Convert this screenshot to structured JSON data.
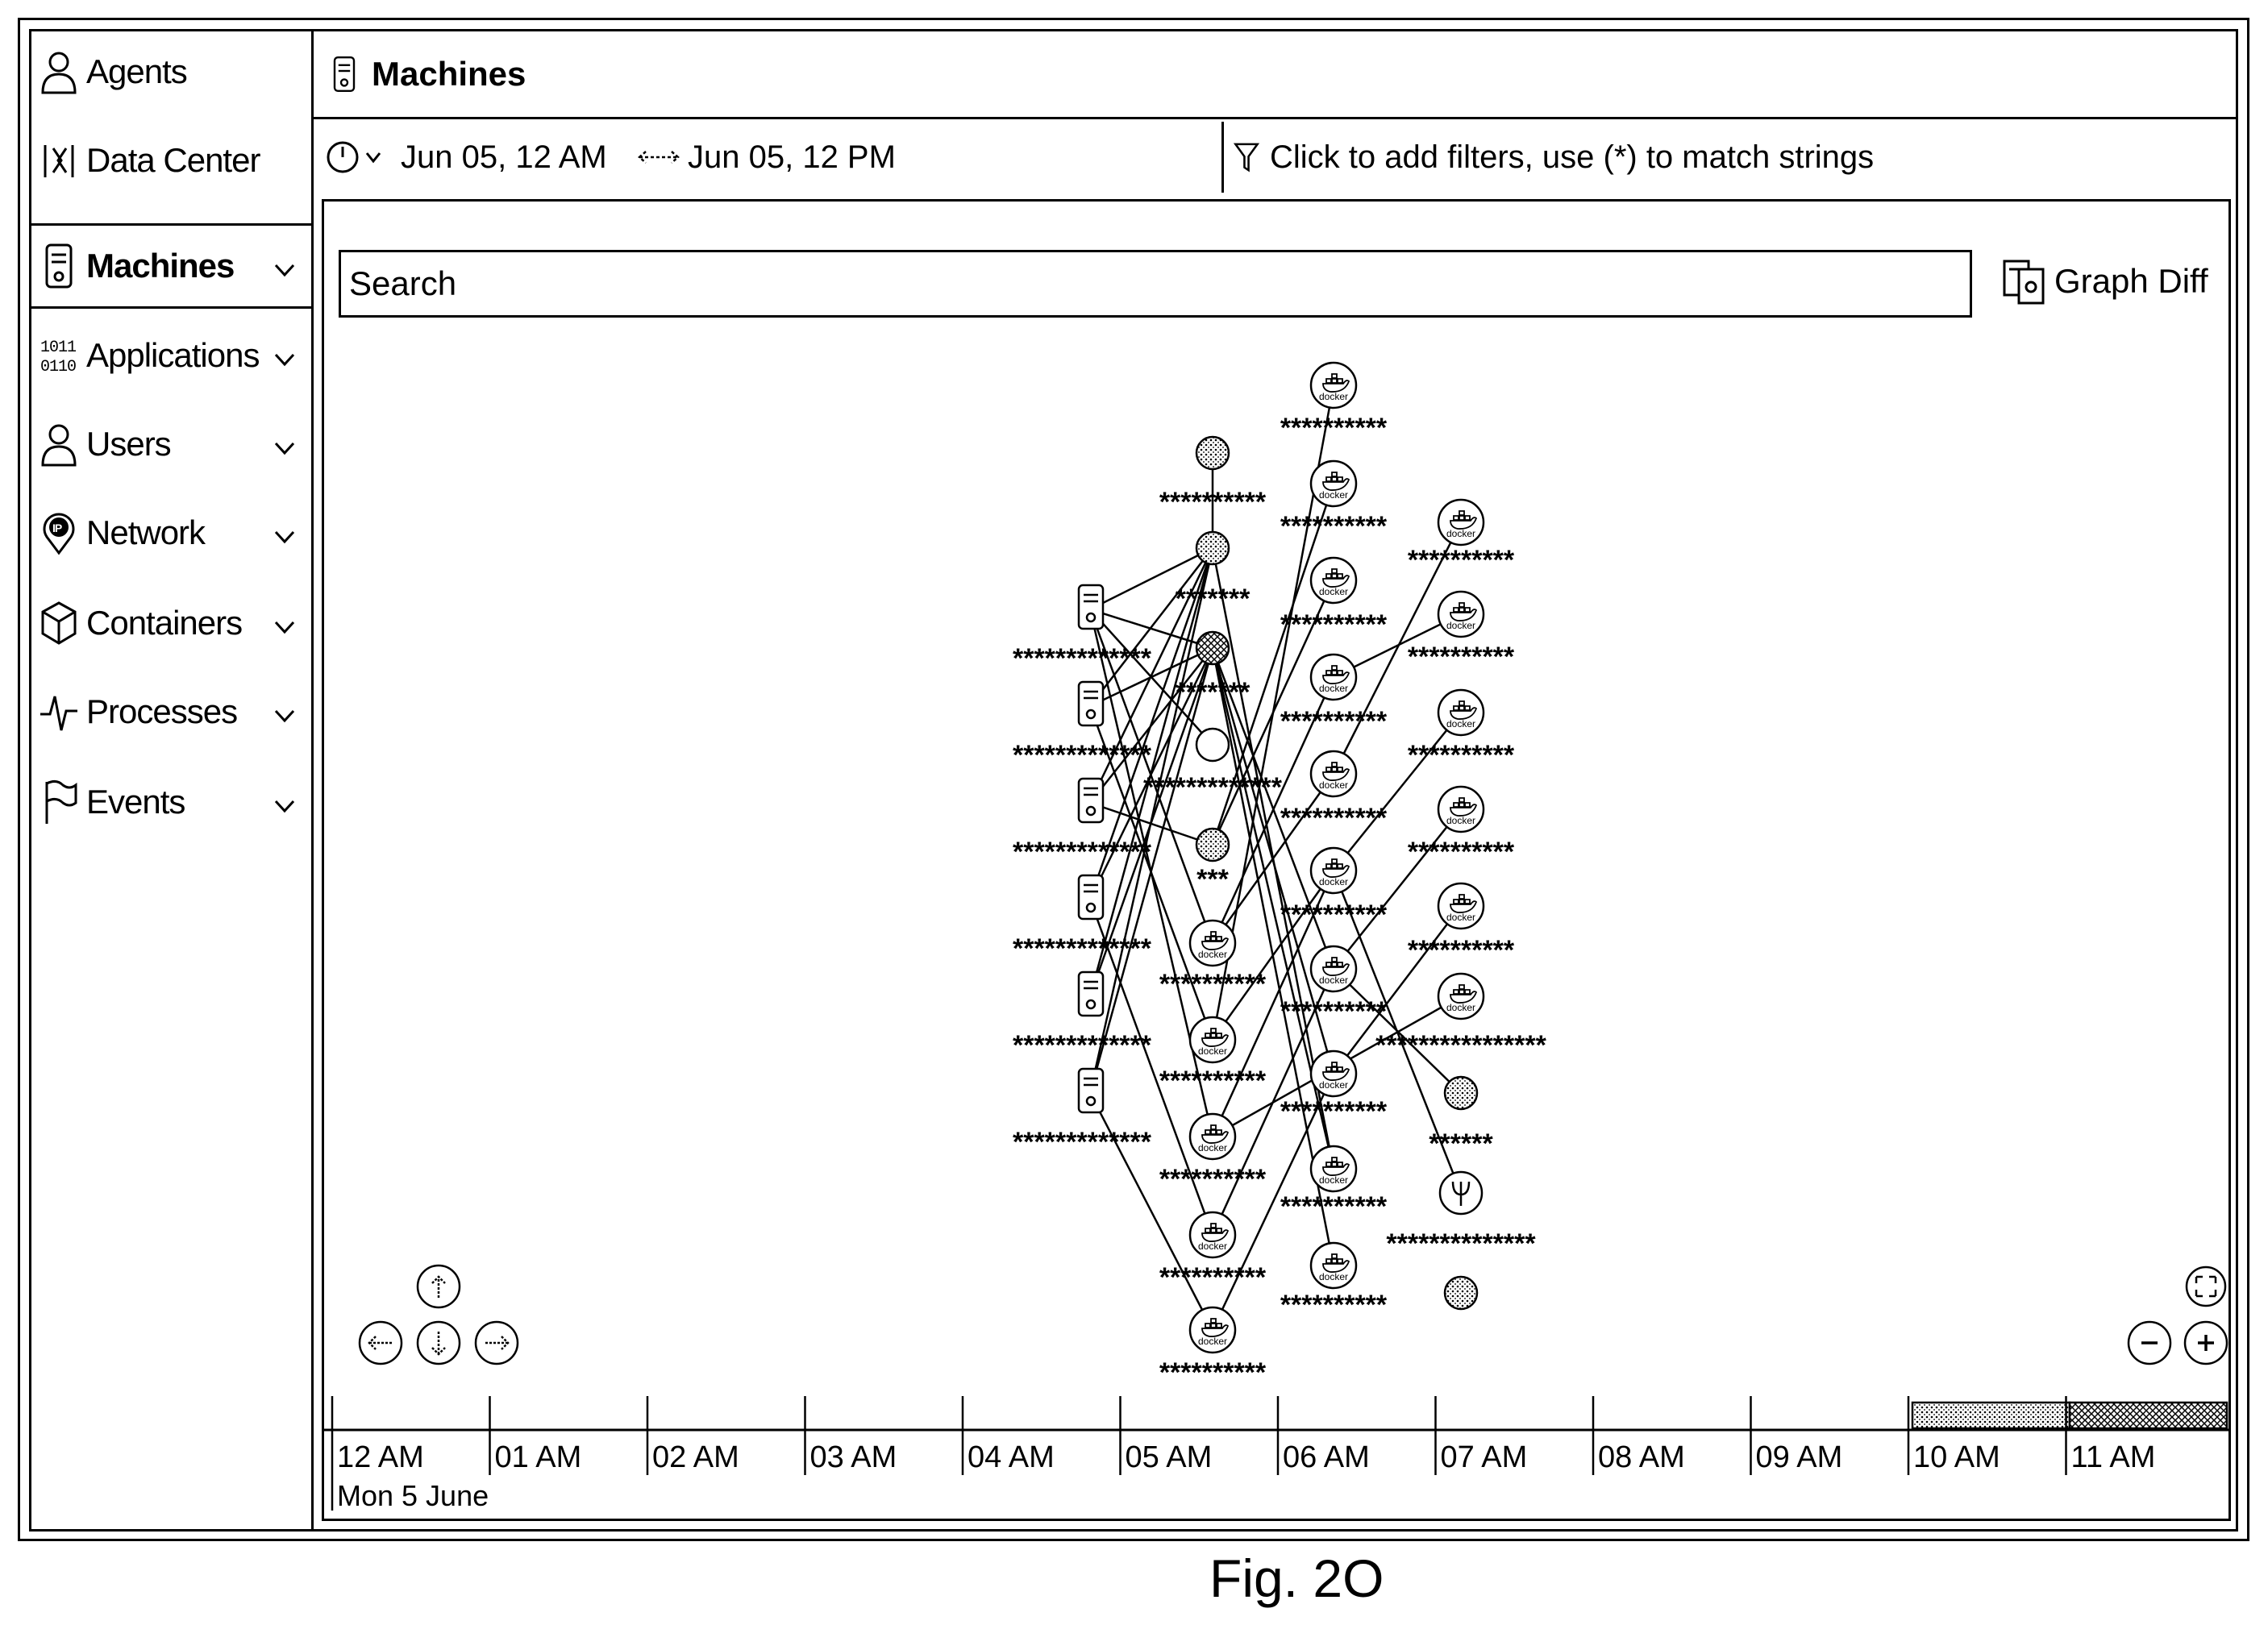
{
  "sidebar": {
    "items": [
      {
        "label": "Agents",
        "icon": "user-icon",
        "chevron": false,
        "active": false
      },
      {
        "label": "Data Center",
        "icon": "datacenter-icon",
        "chevron": false,
        "active": false
      },
      {
        "label": "Machines",
        "icon": "server-icon",
        "chevron": true,
        "active": true
      },
      {
        "label": "Applications",
        "icon": "binary-icon",
        "chevron": true,
        "active": false
      },
      {
        "label": "Users",
        "icon": "user-icon",
        "chevron": true,
        "active": false
      },
      {
        "label": "Network",
        "icon": "ip-pin-icon",
        "chevron": true,
        "active": false
      },
      {
        "label": "Containers",
        "icon": "cube-icon",
        "chevron": true,
        "active": false
      },
      {
        "label": "Processes",
        "icon": "pulse-icon",
        "chevron": true,
        "active": false
      },
      {
        "label": "Events",
        "icon": "flag-icon",
        "chevron": true,
        "active": false
      }
    ]
  },
  "header": {
    "title": "Machines",
    "icon": "server-icon"
  },
  "filters": {
    "start_time": "Jun 05, 12 AM",
    "end_time": "Jun 05, 12 PM",
    "filter_placeholder": "Click to add filters, use (*) to match strings"
  },
  "search": {
    "value": "Search"
  },
  "graph_diff_label": "Graph Diff",
  "graph": {
    "node_mask": "**********",
    "machine_label": "*************",
    "short_label_7": "*******",
    "short_label_3": "***",
    "short_label_6": "******",
    "long_label_16": "****************",
    "long_label_14": "**************",
    "docker_text": "docker"
  },
  "timeline": {
    "ticks": [
      "12 AM",
      "01 AM",
      "02 AM",
      "03 AM",
      "04 AM",
      "05 AM",
      "06 AM",
      "07 AM",
      "08 AM",
      "09 AM",
      "10 AM",
      "11 AM"
    ],
    "date_label": "Mon 5 June"
  },
  "figure_caption": "Fig. 2O"
}
